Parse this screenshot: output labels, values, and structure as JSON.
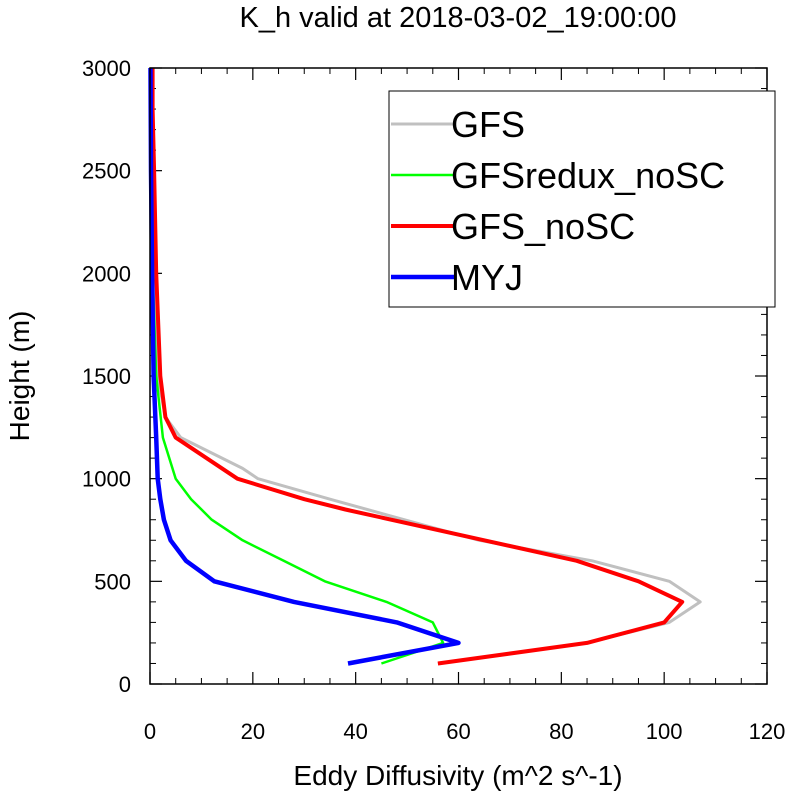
{
  "chart_data": {
    "type": "line",
    "title": "K_h valid at 2018-03-02_19:00:00",
    "xlabel": "Eddy Diffusivity (m^2 s^-1)",
    "ylabel": "Height (m)",
    "xlim": [
      0,
      120
    ],
    "ylim": [
      0,
      3000
    ],
    "xticks": [
      0,
      20,
      40,
      60,
      80,
      100,
      120
    ],
    "yticks": [
      0,
      500,
      1000,
      1500,
      2000,
      2500,
      3000
    ],
    "grid": false,
    "legend_position": "top-right",
    "series": [
      {
        "name": "GFS",
        "color": "#c0c0c0",
        "x": [
          56,
          85,
          101,
          107,
          101,
          86,
          64,
          35,
          21,
          18,
          6,
          3,
          1.5,
          1,
          0.5,
          0.5,
          0.5
        ],
        "y": [
          100,
          200,
          300,
          400,
          500,
          600,
          700,
          900,
          1000,
          1050,
          1200,
          1300,
          1500,
          2000,
          2500,
          2800,
          3000
        ]
      },
      {
        "name": "GFSredux_noSC",
        "color": "#00ff00",
        "x": [
          45,
          57,
          55,
          46,
          34,
          26,
          18,
          12,
          8,
          5,
          2.5,
          1.2,
          0.5,
          0.3,
          0.2
        ],
        "y": [
          100,
          200,
          300,
          400,
          500,
          600,
          700,
          800,
          900,
          1000,
          1200,
          1500,
          2000,
          2500,
          3000
        ]
      },
      {
        "name": "GFS_noSC",
        "color": "#ff0000",
        "x": [
          56,
          85,
          100,
          103.5,
          95,
          83,
          65,
          38,
          30,
          17,
          5,
          3,
          2,
          1.2,
          0.8,
          0.5,
          0.5
        ],
        "y": [
          100,
          200,
          300,
          400,
          500,
          600,
          700,
          850,
          900,
          1000,
          1200,
          1300,
          1500,
          2000,
          2500,
          2800,
          3000
        ]
      },
      {
        "name": "MYJ",
        "color": "#0000ff",
        "x": [
          38.5,
          60,
          48,
          28,
          12.5,
          7,
          4,
          2.7,
          2,
          1.5,
          1.2,
          0.7,
          0.4,
          0.2,
          0.1
        ],
        "y": [
          100,
          200,
          300,
          400,
          500,
          600,
          700,
          800,
          900,
          1000,
          1200,
          1500,
          2000,
          2500,
          3000
        ]
      }
    ]
  }
}
